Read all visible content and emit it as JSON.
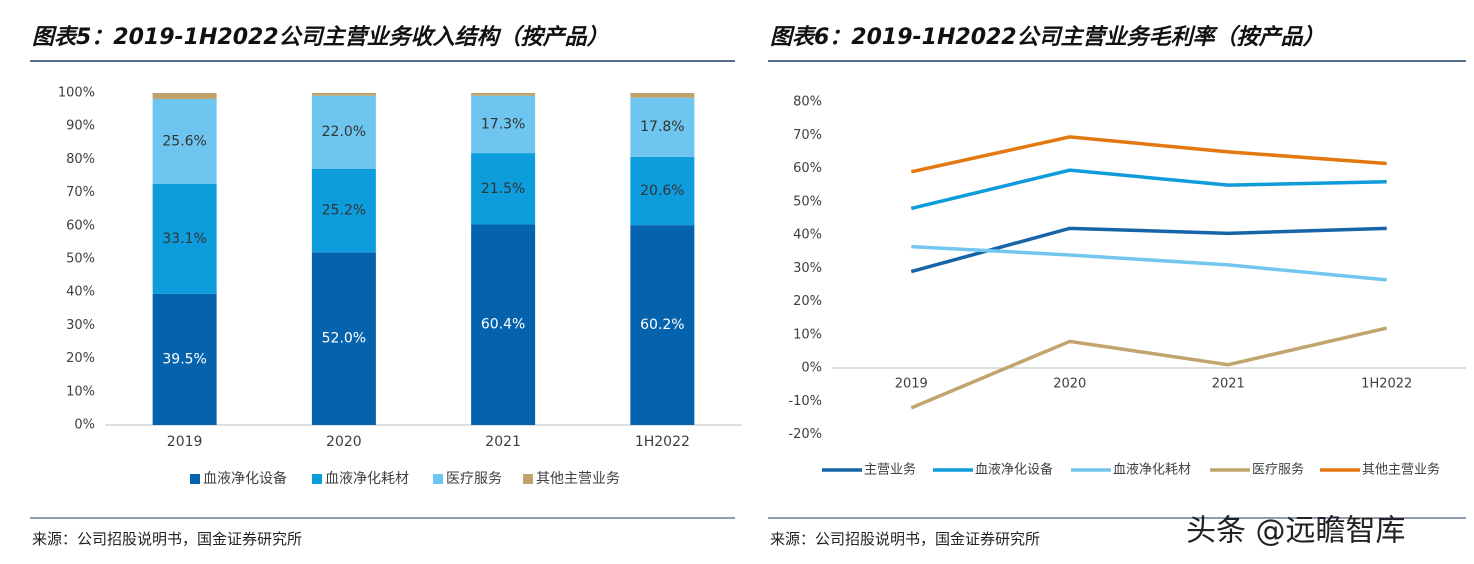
{
  "watermark": "头条 @远瞻智库",
  "chart_data": [
    {
      "type": "stacked_bar",
      "title": "图表5：2019-1H2022公司主营业务收入结构（按产品）",
      "source": "来源：公司招股说明书，国金证券研究所",
      "categories": [
        "2019",
        "2020",
        "2021",
        "1H2022"
      ],
      "ylim": [
        0,
        100
      ],
      "yticks": [
        {
          "value": 0,
          "label": "0%"
        },
        {
          "value": 10,
          "label": "10%"
        },
        {
          "value": 20,
          "label": "20%"
        },
        {
          "value": 30,
          "label": "30%"
        },
        {
          "value": 40,
          "label": "40%"
        },
        {
          "value": 50,
          "label": "50%"
        },
        {
          "value": 60,
          "label": "60%"
        },
        {
          "value": 70,
          "label": "70%"
        },
        {
          "value": 80,
          "label": "80%"
        },
        {
          "value": 90,
          "label": "90%"
        },
        {
          "value": 100,
          "label": "100%"
        }
      ],
      "series": [
        {
          "name": "血液净化设备",
          "color": "#0563ae",
          "values": [
            39.5,
            52.0,
            60.4,
            60.2
          ],
          "value_labels": [
            "39.5%",
            "52.0%",
            "60.4%",
            "60.2%"
          ]
        },
        {
          "name": "血液净化耗材",
          "color": "#0d9ddd",
          "values": [
            33.1,
            25.2,
            21.5,
            20.6
          ],
          "value_labels": [
            "33.1%",
            "25.2%",
            "21.5%",
            "20.6%"
          ]
        },
        {
          "name": "医疗服务",
          "color": "#6ec6f0",
          "values": [
            25.6,
            22.0,
            17.3,
            17.8
          ],
          "value_labels": [
            "25.6%",
            "22.0%",
            "17.3%",
            "17.8%"
          ]
        },
        {
          "name": "其他主营业务",
          "color": "#c2a26a",
          "values": [
            1.8,
            0.8,
            0.8,
            1.4
          ]
        }
      ]
    },
    {
      "type": "line",
      "title": "图表6：2019-1H2022公司主营业务毛利率（按产品）",
      "source": "来源：公司招股说明书，国金证券研究所",
      "categories": [
        "2019",
        "2020",
        "2021",
        "1H2022"
      ],
      "ylim": [
        -20,
        80
      ],
      "yticks": [
        {
          "value": -20,
          "label": "-20%"
        },
        {
          "value": -10,
          "label": "-10%"
        },
        {
          "value": 0,
          "label": "0%"
        },
        {
          "value": 10,
          "label": "10%"
        },
        {
          "value": 20,
          "label": "20%"
        },
        {
          "value": 30,
          "label": "30%"
        },
        {
          "value": 40,
          "label": "40%"
        },
        {
          "value": 50,
          "label": "50%"
        },
        {
          "value": 60,
          "label": "60%"
        },
        {
          "value": 70,
          "label": "70%"
        },
        {
          "value": 80,
          "label": "80%"
        }
      ],
      "series": [
        {
          "name": "主营业务",
          "color": "#1565a8",
          "values": [
            29,
            42,
            40.5,
            42
          ]
        },
        {
          "name": "血液净化设备",
          "color": "#0e9bd9",
          "values": [
            48,
            59.5,
            55,
            56
          ]
        },
        {
          "name": "血液净化耗材",
          "color": "#74c6ef",
          "values": [
            36.5,
            34,
            31,
            26.5
          ]
        },
        {
          "name": "医疗服务",
          "color": "#c1a46e",
          "values": [
            -12,
            8,
            1,
            12
          ]
        },
        {
          "name": "其他主营业务",
          "color": "#e3780e",
          "values": [
            59,
            69.5,
            65,
            61.5
          ]
        }
      ]
    }
  ]
}
